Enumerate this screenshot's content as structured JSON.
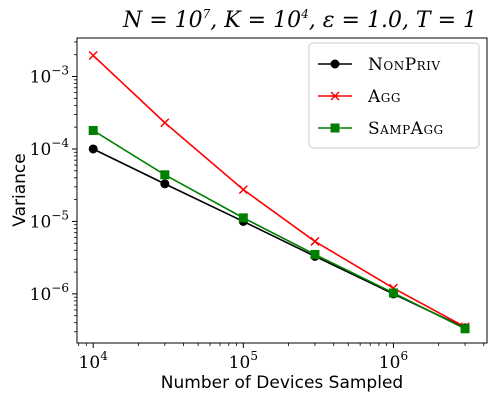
{
  "chart_data": {
    "type": "line",
    "title": "N = 10^7, K = 10^4, ε = 1.0, T = 1",
    "title_parts": {
      "n_label": "N = 10",
      "n_exp": "7",
      "k_label": ", K = 10",
      "k_exp": "4",
      "rest": ", ε = 1.0, T = 1"
    },
    "xlabel": "Number of Devices Sampled",
    "ylabel": "Variance",
    "xscale": "log",
    "yscale": "log",
    "xlim": [
      7800,
      4200000
    ],
    "ylim": [
      2.1e-07,
      0.0034
    ],
    "xticks": [
      {
        "value": 10000,
        "base": "10",
        "exp": "4"
      },
      {
        "value": 100000,
        "base": "10",
        "exp": "5"
      },
      {
        "value": 1000000,
        "base": "10",
        "exp": "6"
      }
    ],
    "yticks": [
      {
        "value": 1e-06,
        "base": "10",
        "exp": "−6"
      },
      {
        "value": 1e-05,
        "base": "10",
        "exp": "−5"
      },
      {
        "value": 0.0001,
        "base": "10",
        "exp": "−4"
      },
      {
        "value": 0.001,
        "base": "10",
        "exp": "−3"
      }
    ],
    "grid": false,
    "legend_position": "top-right",
    "x": [
      10000,
      30000,
      100000,
      300000,
      1000000,
      3000000
    ],
    "series": [
      {
        "name": "NonPriv",
        "color": "#000000",
        "marker": "circle",
        "values": [
          0.0001,
          3.3e-05,
          1e-05,
          3.3e-06,
          1e-06,
          3.4e-07
        ]
      },
      {
        "name": "Agg",
        "color": "#ff0000",
        "marker": "x",
        "values": [
          0.00195,
          0.00023,
          2.75e-05,
          5.3e-06,
          1.2e-06,
          3.5e-07
        ]
      },
      {
        "name": "SampAgg",
        "color": "#008000",
        "marker": "square",
        "values": [
          0.00018,
          4.4e-05,
          1.12e-05,
          3.5e-06,
          1.03e-06,
          3.3e-07
        ]
      }
    ]
  }
}
